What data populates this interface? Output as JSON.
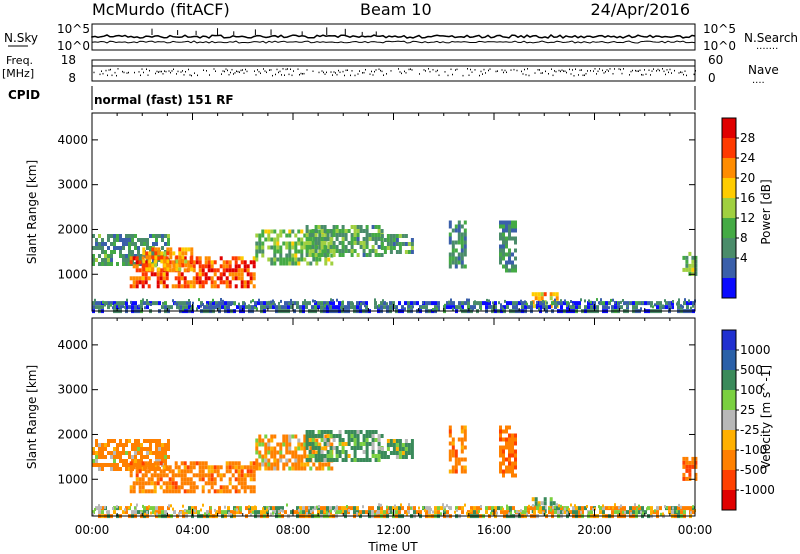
{
  "header": {
    "station": "McMurdo (fitACF)",
    "beam": "Beam 10",
    "date": "24/Apr/2016"
  },
  "top_panels": {
    "nsky_label": "N.Sky",
    "nsky_ticks": [
      "10^5",
      "10^0"
    ],
    "nsearch_label": "N.Search",
    "nsearch_ticks": [
      "10^5",
      "10^0"
    ],
    "freq_label": "Freq.",
    "freq_unit": "[MHz]",
    "freq_ticks": [
      "18",
      "8"
    ],
    "nave_label": "Nave",
    "nave_ticks": [
      "60",
      "0"
    ],
    "cpid_label": "CPID",
    "cpid_text": "normal (fast) 151 RF"
  },
  "legend": {
    "power_label": "Power [dB]",
    "power_ticks": [
      "28",
      "24",
      "20",
      "16",
      "12",
      "8",
      "4"
    ],
    "power_colors": [
      "#e00000",
      "#ff3a00",
      "#ff8c00",
      "#ffcc00",
      "#a0d040",
      "#44aa44",
      "#4a8c6a",
      "#3a5faa",
      "#0a0aff"
    ],
    "velocity_label": "Velocity [m s^-1]",
    "velocity_ticks": [
      "1000",
      "500",
      "100",
      "25",
      "-25",
      "-100",
      "-500",
      "-1000"
    ],
    "velocity_colors": [
      "#2030d0",
      "#2a60a8",
      "#3a8a5a",
      "#7ad040",
      "#b8b8b8",
      "#ffb000",
      "#ff8000",
      "#ff4000",
      "#e00000"
    ]
  },
  "chart_data": [
    {
      "type": "heatmap",
      "name": "power",
      "ylabel": "Slant Range [km]",
      "xlabel": "Time UT",
      "x_ticks": [
        "00:00",
        "04:00",
        "08:00",
        "12:00",
        "16:00",
        "20:00",
        "00:00"
      ],
      "y_ticks": [
        1000,
        2000,
        3000,
        4000
      ],
      "xlim_hours": [
        0,
        24
      ],
      "ylim_km": [
        180,
        4600
      ],
      "patches": [
        {
          "t0": 0.0,
          "t1": 3.0,
          "r0": 1200,
          "r1": 1900,
          "value": 10
        },
        {
          "t0": 1.5,
          "t1": 6.5,
          "r0": 700,
          "r1": 1400,
          "value": 26
        },
        {
          "t0": 2.0,
          "t1": 4.0,
          "r0": 1100,
          "r1": 1600,
          "value": 22
        },
        {
          "t0": 6.5,
          "t1": 9.5,
          "r0": 1200,
          "r1": 2000,
          "value": 14
        },
        {
          "t0": 8.5,
          "t1": 11.5,
          "r0": 1400,
          "r1": 2100,
          "value": 12
        },
        {
          "t0": 11.5,
          "t1": 12.8,
          "r0": 1500,
          "r1": 1900,
          "value": 10
        },
        {
          "t0": 14.2,
          "t1": 14.9,
          "r0": 1200,
          "r1": 2200,
          "value": 9
        },
        {
          "t0": 16.2,
          "t1": 16.8,
          "r0": 1100,
          "r1": 2200,
          "value": 9
        },
        {
          "t0": 17.5,
          "t1": 18.5,
          "r0": 300,
          "r1": 600,
          "value": 20
        },
        {
          "t0": 0.0,
          "t1": 24.0,
          "r0": 200,
          "r1": 400,
          "value": 6
        },
        {
          "t0": 23.5,
          "t1": 24.0,
          "r0": 1000,
          "r1": 1500,
          "value": 14
        }
      ]
    },
    {
      "type": "heatmap",
      "name": "velocity",
      "ylabel": "Slant Range [km]",
      "xlabel": "Time UT",
      "x_ticks": [
        "00:00",
        "04:00",
        "08:00",
        "12:00",
        "16:00",
        "20:00",
        "00:00"
      ],
      "y_ticks": [
        1000,
        2000,
        3000,
        4000
      ],
      "xlim_hours": [
        0,
        24
      ],
      "ylim_km": [
        180,
        4600
      ],
      "patches": [
        {
          "t0": 0.0,
          "t1": 3.0,
          "r0": 1200,
          "r1": 1900,
          "value": -200
        },
        {
          "t0": 1.5,
          "t1": 6.5,
          "r0": 700,
          "r1": 1400,
          "value": -300
        },
        {
          "t0": 6.5,
          "t1": 9.5,
          "r0": 1200,
          "r1": 2000,
          "value": -150
        },
        {
          "t0": 8.5,
          "t1": 11.5,
          "r0": 1400,
          "r1": 2100,
          "value": 200
        },
        {
          "t0": 11.5,
          "t1": 12.8,
          "r0": 1500,
          "r1": 1900,
          "value": 150
        },
        {
          "t0": 14.2,
          "t1": 14.9,
          "r0": 1200,
          "r1": 2200,
          "value": -300
        },
        {
          "t0": 16.2,
          "t1": 16.8,
          "r0": 1100,
          "r1": 2200,
          "value": -400
        },
        {
          "t0": 17.5,
          "t1": 18.5,
          "r0": 300,
          "r1": 600,
          "value": 150
        },
        {
          "t0": 0.0,
          "t1": 24.0,
          "r0": 200,
          "r1": 400,
          "value": -50
        },
        {
          "t0": 23.5,
          "t1": 24.0,
          "r0": 1000,
          "r1": 1500,
          "value": -400
        }
      ]
    }
  ]
}
